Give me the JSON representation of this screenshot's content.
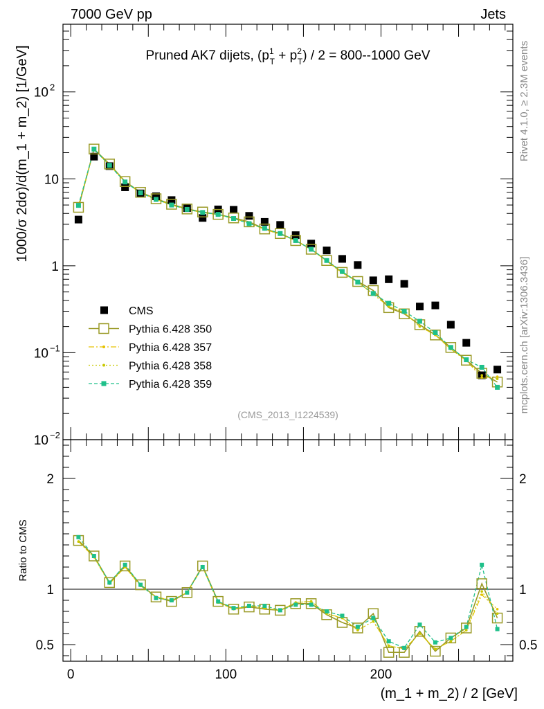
{
  "header": {
    "left": "7000 GeV pp",
    "right": "Jets"
  },
  "side_labels": {
    "rivet": "Rivet 4.1.0, ≥ 2.3M events",
    "mcplots": "mcplots.cern.ch [arXiv:1306.3436]"
  },
  "colors": {
    "cms": "#000000",
    "p350": "#9a9a26",
    "p357": "#e6c200",
    "p358": "#c8c800",
    "p359": "#1fc08a"
  },
  "chart_data": [
    {
      "type": "scatter",
      "panel": "main",
      "title": "Pruned AK7 dijets, (p_T^1 + p_T^2) / 2 = 800--1000 GeV",
      "title_parts": {
        "pre": "Pruned AK7 dijets, (p",
        "sup1": "1",
        "sub1": "T",
        "mid": " + p",
        "sup2": "2",
        "sub2": "T",
        "post": ") / 2 = 800--1000 GeV"
      },
      "ylabel": "1000/σ   2dσ)/d(m_1 + m_2) [1/GeV]",
      "yscale": "log",
      "ylim": [
        0.01,
        600
      ],
      "xlim": [
        -5,
        285
      ],
      "yticks": [
        {
          "value": 0.01,
          "label": "10",
          "exp": "−2"
        },
        {
          "value": 0.1,
          "label": "10",
          "exp": "−1"
        },
        {
          "value": 1,
          "label": "1",
          "exp": ""
        },
        {
          "value": 10,
          "label": "10",
          "exp": ""
        },
        {
          "value": 100,
          "label": "10",
          "exp": "2"
        }
      ],
      "watermark": "(CMS_2013_I1224539)",
      "legend": {
        "placement": "lower-left",
        "entries": [
          {
            "name": "CMS",
            "style": "square-marker"
          },
          {
            "name": "Pythia 6.428 350",
            "style": "open-square-solid"
          },
          {
            "name": "Pythia 6.428 357",
            "style": "dashdot"
          },
          {
            "name": "Pythia 6.428 358",
            "style": "dotted"
          },
          {
            "name": "Pythia 6.428 359",
            "style": "dashed-square"
          }
        ]
      },
      "x": [
        5,
        15,
        25,
        35,
        45,
        55,
        65,
        75,
        85,
        95,
        105,
        115,
        125,
        135,
        145,
        155,
        165,
        175,
        185,
        195,
        205,
        215,
        225,
        235,
        245,
        255,
        265,
        275
      ],
      "series": [
        {
          "name": "CMS",
          "values": [
            3.4,
            18.0,
            14.0,
            8.0,
            6.8,
            6.3,
            5.7,
            4.6,
            3.55,
            4.45,
            4.4,
            3.75,
            3.2,
            2.95,
            2.25,
            1.8,
            1.5,
            1.2,
            1.02,
            0.68,
            0.7,
            0.62,
            0.34,
            0.35,
            0.21,
            0.13,
            0.055,
            0.064
          ]
        },
        {
          "name": "Pythia 6.428 350",
          "values": [
            4.7,
            22.0,
            14.8,
            9.3,
            7.0,
            5.9,
            5.1,
            4.5,
            4.15,
            3.9,
            3.55,
            3.2,
            2.65,
            2.35,
            1.95,
            1.55,
            1.15,
            0.84,
            0.66,
            0.52,
            0.33,
            0.28,
            0.21,
            0.16,
            0.115,
            0.082,
            0.058,
            0.046
          ]
        },
        {
          "name": "Pythia 6.428 357",
          "values": [
            4.9,
            21.5,
            14.5,
            9.2,
            6.9,
            5.8,
            5.0,
            4.45,
            4.1,
            3.85,
            3.5,
            3.1,
            2.62,
            2.3,
            1.95,
            1.55,
            1.13,
            0.83,
            0.65,
            0.47,
            0.34,
            0.29,
            0.2,
            0.16,
            0.11,
            0.081,
            0.052,
            0.053
          ]
        },
        {
          "name": "Pythia 6.428 358",
          "values": [
            4.9,
            21.5,
            14.5,
            9.2,
            6.9,
            5.8,
            5.0,
            4.45,
            4.1,
            3.85,
            3.5,
            3.1,
            2.62,
            2.3,
            1.95,
            1.55,
            1.13,
            0.83,
            0.65,
            0.47,
            0.34,
            0.29,
            0.2,
            0.16,
            0.11,
            0.081,
            0.055,
            0.05
          ]
        },
        {
          "name": "Pythia 6.428 359",
          "values": [
            4.95,
            22.0,
            14.3,
            9.2,
            6.9,
            5.8,
            5.0,
            4.45,
            4.1,
            3.9,
            3.5,
            3.05,
            2.7,
            2.35,
            1.95,
            1.55,
            1.15,
            0.86,
            0.65,
            0.48,
            0.37,
            0.3,
            0.23,
            0.17,
            0.115,
            0.083,
            0.068,
            0.04
          ]
        }
      ]
    },
    {
      "type": "line",
      "panel": "ratio",
      "ylabel": "Ratio to CMS",
      "xlabel": "(m_1 + m_2) / 2 [GeV]",
      "ylim": [
        0.35,
        2.35
      ],
      "xlim": [
        -5,
        285
      ],
      "yticks": [
        0.5,
        1,
        2
      ],
      "ytick_labels": [
        "0.5",
        "1",
        "2"
      ],
      "xticks": [
        0,
        100,
        200
      ],
      "xtick_labels": [
        "0",
        "100",
        "200"
      ],
      "reference_line": 1,
      "x": [
        5,
        15,
        25,
        35,
        45,
        55,
        65,
        75,
        85,
        95,
        105,
        115,
        125,
        135,
        145,
        155,
        165,
        175,
        185,
        195,
        205,
        215,
        225,
        235,
        245,
        255,
        265,
        275
      ],
      "series": [
        {
          "name": "Pythia 6.428 350",
          "values": [
            1.44,
            1.3,
            1.06,
            1.21,
            1.04,
            0.93,
            0.89,
            0.97,
            1.21,
            0.89,
            0.82,
            0.84,
            0.82,
            0.81,
            0.87,
            0.87,
            0.77,
            0.7,
            0.65,
            0.78,
            0.43,
            0.43,
            0.62,
            0.44,
            0.56,
            0.65,
            1.05,
            0.74
          ]
        },
        {
          "name": "Pythia 6.428 357",
          "values": [
            1.43,
            1.29,
            1.05,
            1.2,
            1.03,
            0.93,
            0.9,
            0.97,
            1.2,
            0.88,
            0.82,
            0.85,
            0.83,
            0.81,
            0.88,
            0.89,
            0.78,
            0.74,
            0.63,
            0.71,
            0.49,
            0.46,
            0.6,
            0.46,
            0.53,
            0.63,
            0.95,
            0.82
          ]
        },
        {
          "name": "Pythia 6.428 358",
          "values": [
            1.43,
            1.29,
            1.05,
            1.2,
            1.03,
            0.93,
            0.9,
            0.97,
            1.2,
            0.88,
            0.82,
            0.85,
            0.83,
            0.81,
            0.88,
            0.89,
            0.78,
            0.74,
            0.63,
            0.71,
            0.49,
            0.46,
            0.6,
            0.46,
            0.53,
            0.63,
            0.98,
            0.78
          ]
        },
        {
          "name": "Pythia 6.428 359",
          "values": [
            1.47,
            1.3,
            1.06,
            1.22,
            1.04,
            0.92,
            0.9,
            0.97,
            1.2,
            0.89,
            0.83,
            0.85,
            0.85,
            0.81,
            0.86,
            0.86,
            0.8,
            0.76,
            0.66,
            0.74,
            0.53,
            0.47,
            0.68,
            0.52,
            0.56,
            0.66,
            1.22,
            0.64
          ]
        }
      ]
    }
  ]
}
